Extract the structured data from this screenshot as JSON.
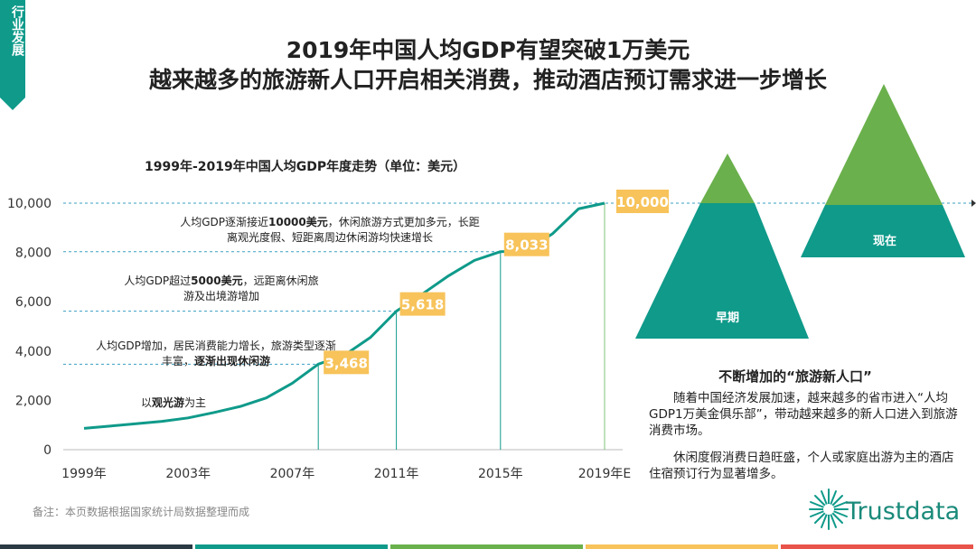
{
  "header": {
    "tag": "行业发展",
    "title_line1": "2019年中国人均GDP有望突破1万美元",
    "title_line2": "越来越多的旅游新人口开启相关消费，推动酒店预订需求进一步增长"
  },
  "chart_data": {
    "type": "line",
    "title": "1999年-2019年中国人均GDP年度走势（单位：美元）",
    "x": [
      1999,
      2000,
      2001,
      2002,
      2003,
      2004,
      2005,
      2006,
      2007,
      2008,
      2009,
      2010,
      2011,
      2012,
      2013,
      2014,
      2015,
      2016,
      2017,
      2018,
      2019
    ],
    "values": [
      864,
      959,
      1053,
      1149,
      1289,
      1509,
      1753,
      2099,
      2694,
      3468,
      3832,
      4550,
      5618,
      6316,
      7050,
      7678,
      8033,
      8079,
      8759,
      9771,
      10000
    ],
    "xtick_labels": [
      "1999年",
      "2003年",
      "2007年",
      "2011年",
      "2015年",
      "2019年E"
    ],
    "xtick_values": [
      1999,
      2003,
      2007,
      2011,
      2015,
      2019
    ],
    "ytick_labels": [
      "0",
      "2,000",
      "4,000",
      "6,000",
      "8,000",
      "10,000"
    ],
    "ylim": [
      0,
      10000
    ],
    "data_labels": [
      {
        "x": 2008,
        "y": 3468,
        "text": "3,468"
      },
      {
        "x": 2011,
        "y": 5618,
        "text": "5,618"
      },
      {
        "x": 2015,
        "y": 8033,
        "text": "8,033"
      },
      {
        "x": 2019,
        "y": 10000,
        "text": "10,000"
      }
    ],
    "annotations": {
      "a1": "以观光游为主",
      "a1_bold": "观光游",
      "a2_line1": "人均GDP增加，居民消费能力增长，旅游类型逐渐",
      "a2_line2": "丰富，逐渐出现休闲游",
      "a2_bold": "逐渐出现休闲游",
      "a3_line1": "人均GDP超过5000美元，远距离休闲旅",
      "a3_line2": "游及出境游增加",
      "a3_bold": "5000美元",
      "a4_line1": "人均GDP逐渐接近10000美元，休闲旅游方式更加多元，长距",
      "a4_line2": "离观光度假、短距离周边休闲游均快速增长",
      "a4_bold": "10000美元"
    },
    "colors": {
      "line": "#0f9a8a",
      "label_bg": "#f7c35a",
      "grid": "#3a9fc2"
    }
  },
  "pyramids": {
    "early_label": "早期",
    "now_label": "现在",
    "colors": {
      "top": "#6ab04c",
      "bottom": "#0f9a8a"
    }
  },
  "side": {
    "title": "不断增加的“旅游新人口”",
    "p1": "随着中国经济发展加速，越来越多的省市进入“人均GDP1万美金俱乐部”，带动越来越多的新人口进入到旅游消费市场。",
    "p2": "休闲度假消费日趋旺盛，个人或家庭出游为主的酒店住宿预订行为显著增多。"
  },
  "footer": {
    "note": "备注：本页数据根据国家统计局数据整理而成",
    "logo_text": "Trustdata",
    "bar_colors": [
      "#2b3a44",
      "#0f9a8a",
      "#6ab04c",
      "#f7c35a",
      "#e8534a"
    ]
  }
}
